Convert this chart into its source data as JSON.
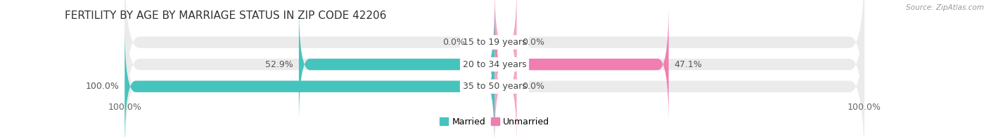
{
  "title": "FERTILITY BY AGE BY MARRIAGE STATUS IN ZIP CODE 42206",
  "source": "Source: ZipAtlas.com",
  "rows": [
    {
      "label": "15 to 19 years",
      "married": 0.0,
      "unmarried": 0.0
    },
    {
      "label": "20 to 34 years",
      "married": 52.9,
      "unmarried": 47.1
    },
    {
      "label": "35 to 50 years",
      "married": 100.0,
      "unmarried": 0.0
    }
  ],
  "married_color": "#45C4BD",
  "unmarried_color": "#F07EB0",
  "unmarried_color_light": "#F5A8C8",
  "bar_bg_color": "#EBEBEB",
  "axis_bg_color": "#FFFFFF",
  "title_fontsize": 11,
  "label_fontsize": 9,
  "tick_fontsize": 9,
  "legend_fontsize": 9,
  "x_max": 100,
  "bar_gap": 0.35,
  "bar_height": 0.52
}
